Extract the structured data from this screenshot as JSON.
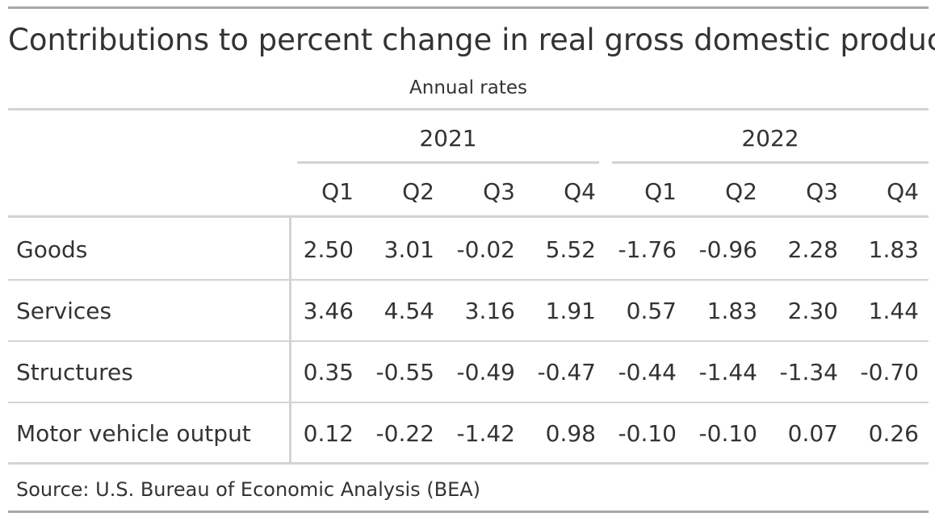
{
  "chart_data": {
    "type": "table",
    "title": "Contributions to percent change in real gross domestic product",
    "subtitle": "Annual rates",
    "spanners": [
      "2021",
      "2022"
    ],
    "columns": [
      "Q1",
      "Q2",
      "Q3",
      "Q4",
      "Q1",
      "Q2",
      "Q3",
      "Q4"
    ],
    "rows": [
      {
        "label": "Goods",
        "values": [
          "2.50",
          "3.01",
          "-0.02",
          "5.52",
          "-1.76",
          "-0.96",
          "2.28",
          "1.83"
        ]
      },
      {
        "label": "Services",
        "values": [
          "3.46",
          "4.54",
          "3.16",
          "1.91",
          "0.57",
          "1.83",
          "2.30",
          "1.44"
        ]
      },
      {
        "label": "Structures",
        "values": [
          "0.35",
          "-0.55",
          "-0.49",
          "-0.47",
          "-0.44",
          "-1.44",
          "-1.34",
          "-0.70"
        ]
      },
      {
        "label": "Motor vehicle output",
        "values": [
          "0.12",
          "-0.22",
          "-1.42",
          "0.98",
          "-0.10",
          "-0.10",
          "0.07",
          "0.26"
        ]
      }
    ],
    "source": "Source: U.S. Bureau of Economic Analysis (BEA)"
  }
}
